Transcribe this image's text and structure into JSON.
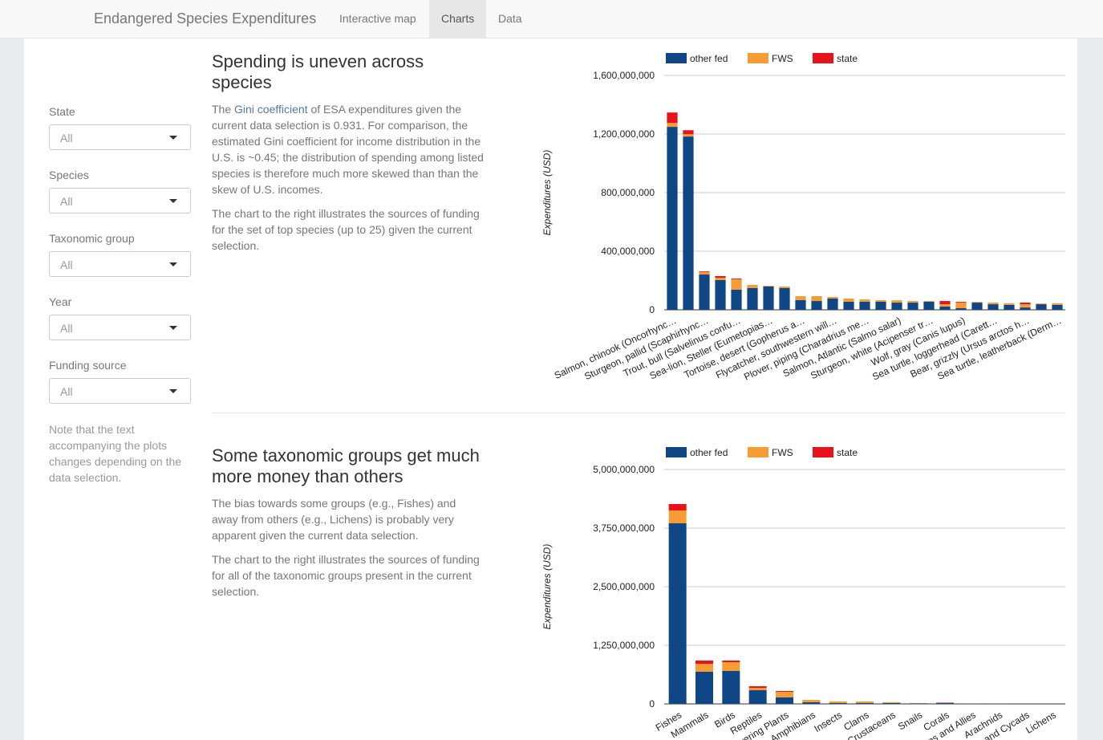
{
  "navbar": {
    "brand": "Endangered Species Expenditures",
    "tabs": [
      "Interactive map",
      "Charts",
      "Data"
    ],
    "active": 1
  },
  "sidebar": {
    "filters": [
      {
        "label": "State",
        "value": "All"
      },
      {
        "label": "Species",
        "value": "All"
      },
      {
        "label": "Taxonomic group",
        "value": "All"
      },
      {
        "label": "Year",
        "value": "All"
      },
      {
        "label": "Funding source",
        "value": "All"
      }
    ],
    "note": "Note that the text accompanying the plots changes depending on the data selection."
  },
  "sections": [
    {
      "heading": "Spending is uneven across species",
      "intro": {
        "before": "The ",
        "link": "Gini coefficient",
        "after": " of ESA expenditures given the current data selection is 0.931. For comparison, the estimated Gini coefficient for income distribution in the U.S. is ~0.45; the distribution of spending among listed species is therefore much more skewed than than the skew of U.S. incomes."
      },
      "paragraphs": [
        "The chart to the right illustrates the sources of funding for the set of top species (up to 25) given the current selection."
      ]
    },
    {
      "heading": "Some taxonomic groups get much more money than others",
      "paragraphs": [
        "The bias towards some groups (e.g., Fishes) and away from others (e.g., Lichens) is probably very apparent given the current data selection.",
        "The chart to the right illustrates the sources of funding for all of the taxonomic groups present in the current selection."
      ]
    }
  ],
  "chart_data": [
    {
      "type": "stacked_bar",
      "y_label": "Expenditures (USD)",
      "categories": [
        "Salmon, chinook (Oncorhync…",
        null,
        "Sturgeon, pallid (Scaphirhync…",
        null,
        "Trout, bull (Salvelinus confu…",
        null,
        "Sea-lion, Steller (Eumetopias…",
        null,
        "Tortoise, desert (Gopherus a…",
        null,
        "Flycatcher, southwestern will…",
        null,
        "Plover, piping (Charadrius me…",
        null,
        "Salmon, Atlantic (Salmo salar)",
        null,
        "Sturgeon, white (Acipenser tr…",
        null,
        "Wolf, gray (Canis lupus)",
        null,
        "Sea turtle, loggerhead (Carett…",
        null,
        "Bear, grizzly (Ursus arctos h…",
        null,
        "Sea turtle, leatherback (Derm…"
      ],
      "series": [
        {
          "name": "other fed",
          "color": "#0e4686",
          "values": [
            1249000000,
            1183000000,
            241000000,
            203000000,
            137000000,
            148000000,
            159000000,
            148000000,
            66000000,
            60000000,
            77000000,
            55000000,
            55000000,
            55000000,
            49000000,
            49000000,
            55000000,
            22000000,
            11000000,
            49000000,
            38000000,
            33000000,
            16000000,
            38000000,
            33000000
          ]
        },
        {
          "name": "FWS",
          "color": "#f59c34",
          "values": [
            27000000,
            16000000,
            16000000,
            16000000,
            71000000,
            22000000,
            5000000,
            11000000,
            27000000,
            33000000,
            11000000,
            22000000,
            16000000,
            11000000,
            16000000,
            11000000,
            5000000,
            16000000,
            38000000,
            5000000,
            11000000,
            11000000,
            22000000,
            5000000,
            11000000
          ]
        },
        {
          "name": "state",
          "color": "#e8121a",
          "values": [
            71000000,
            27000000,
            5000000,
            11000000,
            5000000,
            0,
            0,
            0,
            0,
            0,
            0,
            0,
            0,
            0,
            0,
            0,
            0,
            22000000,
            5000000,
            0,
            0,
            0,
            11000000,
            0,
            0
          ]
        }
      ],
      "ylim": [
        0,
        1600000000
      ],
      "yticks": [
        0,
        {
          "value": 400000000,
          "label": "400,000,000"
        },
        {
          "value": 800000000,
          "label": "800,000,000"
        },
        {
          "value": 1200000000,
          "label": "1,200,000,000"
        },
        {
          "value": 1600000000,
          "label": "1,600,000,000"
        }
      ],
      "grid": true,
      "legend": "top"
    },
    {
      "type": "stacked_bar",
      "y_label": "Expenditures (USD)",
      "categories": [
        "Fishes",
        "Mammals",
        "Birds",
        "Reptiles",
        "Flowering Plants",
        "Amphibians",
        "Insects",
        "Clams",
        "Crustaceans",
        "Snails",
        "Corals",
        "Ferns and Allies",
        "Arachnids",
        "Conifers and Cycads",
        "Lichens"
      ],
      "series": [
        {
          "name": "other fed",
          "color": "#0e4686",
          "values": [
            3853000000,
            685000000,
            702000000,
            291000000,
            137000000,
            34000000,
            17000000,
            17000000,
            17000000,
            9000000,
            17000000,
            3000000,
            2000000,
            1000000,
            1000000
          ]
        },
        {
          "name": "FWS",
          "color": "#f59c34",
          "values": [
            274000000,
            171000000,
            188000000,
            51000000,
            120000000,
            51000000,
            34000000,
            34000000,
            17000000,
            9000000,
            0,
            0,
            0,
            0,
            0
          ]
        },
        {
          "name": "state",
          "color": "#e8121a",
          "values": [
            137000000,
            68000000,
            34000000,
            34000000,
            17000000,
            0,
            0,
            0,
            0,
            0,
            9000000,
            0,
            0,
            0,
            0
          ]
        }
      ],
      "ylim": [
        0,
        5000000000
      ],
      "yticks": [
        0,
        {
          "value": 1250000000,
          "label": "1,250,000,000"
        },
        {
          "value": 2500000000,
          "label": "2,500,000,000"
        },
        {
          "value": 3750000000,
          "label": "3,750,000,000"
        },
        {
          "value": 5000000000,
          "label": "5,000,000,000"
        }
      ],
      "grid": true,
      "legend": "top"
    }
  ]
}
